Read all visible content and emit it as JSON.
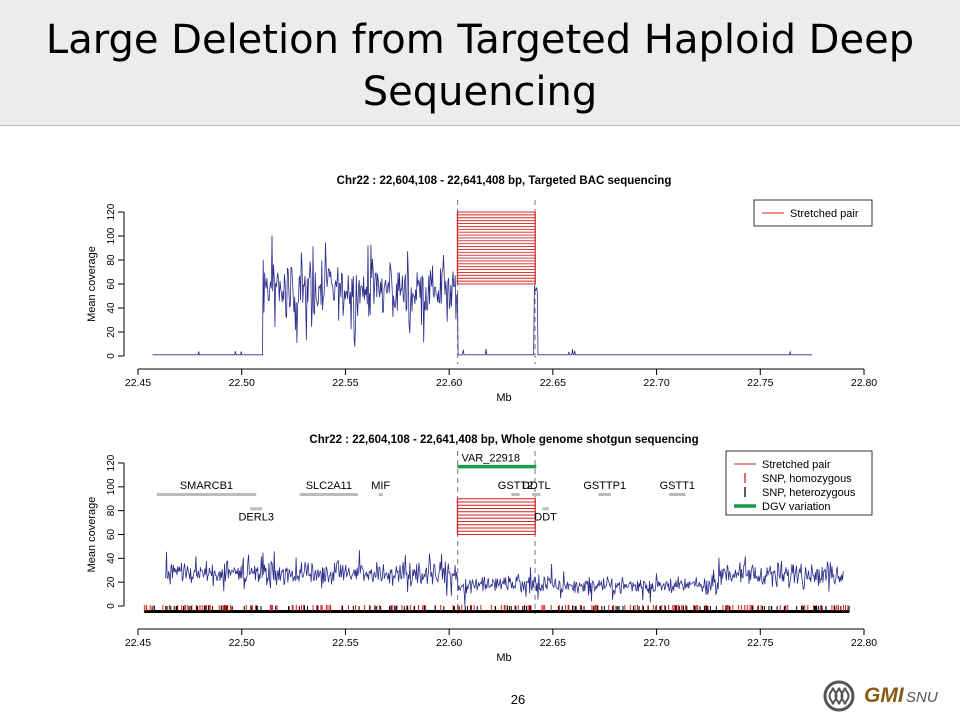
{
  "slide": {
    "title_line1": "Large Deletion from Targeted Haploid Deep",
    "title_line2": "Sequencing",
    "page_number": "26",
    "logo_text": "GMI",
    "logo_subtext": "SNU"
  },
  "colors": {
    "coverage": "#2b2b8c",
    "stretched_pair": "#d42020",
    "snp_homozygous": "#d42020",
    "snp_heterozygous": "#000000",
    "dgv_variation": "#1a9a4a",
    "gene_bar": "#bbbbbb",
    "title_band": "#ececec"
  },
  "chart_data": [
    {
      "type": "line",
      "title": "Chr22 : 22,604,108 - 22,641,408 bp, Targeted BAC sequencing",
      "xlabel": "Mb",
      "ylabel": "Mean coverage",
      "xlim": [
        22.45,
        22.8
      ],
      "ylim": [
        0,
        120
      ],
      "xticks": [
        "22.45",
        "22.50",
        "22.55",
        "22.60",
        "22.65",
        "22.70",
        "22.75",
        "22.80"
      ],
      "yticks": [
        "0",
        "20",
        "40",
        "60",
        "80",
        "100",
        "120"
      ],
      "grid": false,
      "legend_position": "top-right",
      "legend": [
        {
          "label": "Stretched pair",
          "kind": "line",
          "color": "#d42020"
        }
      ],
      "breakpoints_mb": [
        22.604108,
        22.641408
      ],
      "stretched_pairs": {
        "x_start": 22.604,
        "x_end": 22.6415,
        "y_from": 60,
        "y_to": 120,
        "count": 26
      },
      "coverage_profile": {
        "x_start": 22.457,
        "x_end": 22.775,
        "segments": [
          {
            "x0": 22.457,
            "x1": 22.51,
            "mean": 1,
            "noise": 0
          },
          {
            "x0": 22.51,
            "x1": 22.604,
            "mean": 55,
            "noise": 20
          },
          {
            "x0": 22.604,
            "x1": 22.641,
            "mean": 1,
            "noise": 0
          },
          {
            "x0": 22.641,
            "x1": 22.6425,
            "mean": 55,
            "noise": 4
          },
          {
            "x0": 22.6425,
            "x1": 22.775,
            "mean": 1,
            "noise": 0
          }
        ]
      },
      "note_marks": [],
      "genes": [],
      "dgv": null,
      "snp_track": null
    },
    {
      "type": "line",
      "title": "Chr22 : 22,604,108 - 22,641,408 bp, Whole genome shotgun sequencing",
      "xlabel": "Mb",
      "ylabel": "Mean coverage",
      "xlim": [
        22.45,
        22.8
      ],
      "ylim": [
        0,
        120
      ],
      "xticks": [
        "22.45",
        "22.50",
        "22.55",
        "22.60",
        "22.65",
        "22.70",
        "22.75",
        "22.80"
      ],
      "yticks": [
        "0",
        "20",
        "40",
        "60",
        "80",
        "100",
        "120"
      ],
      "grid": false,
      "legend_position": "top-right",
      "legend": [
        {
          "label": "Stretched pair",
          "kind": "line",
          "color": "#d42020"
        },
        {
          "label": "SNP, homozygous",
          "kind": "tick",
          "color": "#d42020"
        },
        {
          "label": "SNP, heterozygous",
          "kind": "tick",
          "color": "#000000"
        },
        {
          "label": "DGV variation",
          "kind": "thick",
          "color": "#1a9a4a"
        }
      ],
      "breakpoints_mb": [
        22.604108,
        22.641408
      ],
      "stretched_pairs": {
        "x_start": 22.604,
        "x_end": 22.6415,
        "y_from": 60,
        "y_to": 90,
        "count": 12
      },
      "coverage_profile": {
        "x_start": 22.463,
        "x_end": 22.79,
        "segments": [
          {
            "x0": 22.463,
            "x1": 22.604,
            "mean": 27,
            "noise": 9
          },
          {
            "x0": 22.604,
            "x1": 22.65,
            "mean": 18,
            "noise": 7
          },
          {
            "x0": 22.65,
            "x1": 22.73,
            "mean": 17,
            "noise": 6
          },
          {
            "x0": 22.73,
            "x1": 22.79,
            "mean": 27,
            "noise": 9
          }
        ]
      },
      "genes": [
        {
          "name": "SMARCB1",
          "x0": 22.459,
          "x1": 22.507,
          "row": 0
        },
        {
          "name": "DERL3",
          "x0": 22.504,
          "x1": 22.51,
          "row": 1
        },
        {
          "name": "SLC2A11",
          "x0": 22.528,
          "x1": 22.556,
          "row": 0
        },
        {
          "name": "MIF",
          "x0": 22.566,
          "x1": 22.568,
          "row": 0
        },
        {
          "name": "GSTT2",
          "x0": 22.63,
          "x1": 22.634,
          "row": 0
        },
        {
          "name": "DDTL",
          "x0": 22.64,
          "x1": 22.644,
          "row": 0
        },
        {
          "name": "DDT",
          "x0": 22.645,
          "x1": 22.648,
          "row": 1
        },
        {
          "name": "GSTTP1",
          "x0": 22.672,
          "x1": 22.678,
          "row": 0
        },
        {
          "name": "GSTT1",
          "x0": 22.706,
          "x1": 22.714,
          "row": 0
        }
      ],
      "dgv": {
        "name": "VAR_22918",
        "x0": 22.604,
        "x1": 22.642,
        "y": 117
      },
      "snp_track": {
        "homozygous_density": 180,
        "heterozygous_density": 140
      }
    }
  ]
}
